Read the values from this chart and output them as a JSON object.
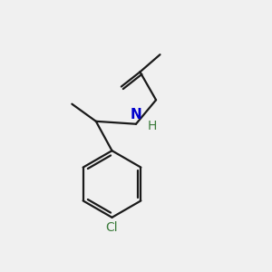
{
  "background_color": "#f0f0f0",
  "bond_color": "#1a1a1a",
  "N_color": "#0000cc",
  "Cl_color": "#3a7a3a",
  "H_color": "#3a7a3a",
  "line_width": 1.6,
  "fig_size": [
    3.0,
    3.0
  ],
  "dpi": 100,
  "xlim": [
    0,
    10
  ],
  "ylim": [
    0,
    10
  ]
}
